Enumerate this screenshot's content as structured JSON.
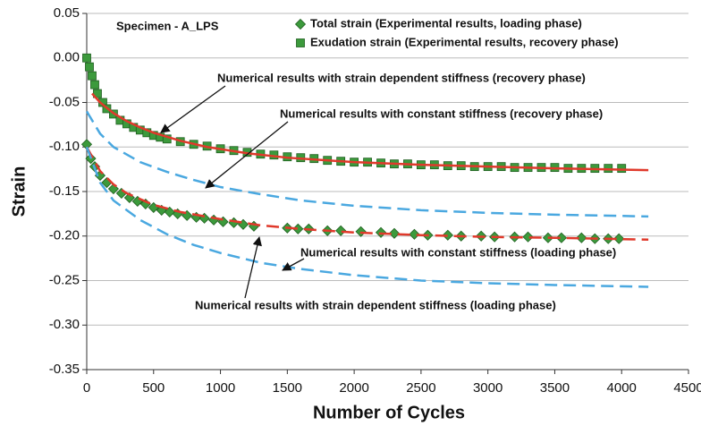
{
  "chart_data": {
    "type": "line",
    "x_label": "Number of Cycles",
    "y_label": "Strain",
    "xlim": [
      0,
      4500
    ],
    "ylim": [
      -0.35,
      0.05
    ],
    "xticks": [
      0,
      500,
      1000,
      1500,
      2000,
      2500,
      3000,
      3500,
      4000,
      4500
    ],
    "yticks": [
      0.05,
      {
        "value": 0,
        "label": "0.00"
      },
      -0.05,
      {
        "value": -0.1,
        "label": "-0.10"
      },
      -0.15,
      {
        "value": -0.2,
        "label": "-0.20"
      },
      -0.25,
      {
        "value": -0.3,
        "label": "-0.30"
      },
      -0.35
    ],
    "grid": true,
    "annotations": [
      "Specimen - A_LPS",
      "Numerical results with strain dependent stiffness (recovery phase)",
      "Numerical results with constant stiffness (recovery phase)",
      "Numerical results with constant stiffness (loading phase)",
      "Numerical results with strain dependent stiffness (loading phase)"
    ],
    "series": [
      {
        "name": "Total strain (Experimental results, loading phase)",
        "color": "#3c9a3c",
        "marker": "diamond",
        "x": [
          0,
          30,
          60,
          100,
          150,
          200,
          260,
          320,
          380,
          440,
          500,
          560,
          620,
          680,
          750,
          820,
          880,
          950,
          1020,
          1100,
          1170,
          1250,
          1500,
          1580,
          1660,
          1800,
          1900,
          2050,
          2200,
          2300,
          2450,
          2550,
          2700,
          2800,
          2950,
          3050,
          3200,
          3300,
          3450,
          3550,
          3700,
          3800,
          3900,
          3980
        ],
        "values": [
          -0.097,
          -0.113,
          -0.122,
          -0.132,
          -0.14,
          -0.147,
          -0.152,
          -0.157,
          -0.161,
          -0.164,
          -0.168,
          -0.171,
          -0.173,
          -0.175,
          -0.177,
          -0.179,
          -0.18,
          -0.182,
          -0.184,
          -0.185,
          -0.187,
          -0.189,
          -0.191,
          -0.192,
          -0.192,
          -0.194,
          -0.194,
          -0.195,
          -0.196,
          -0.197,
          -0.198,
          -0.199,
          -0.199,
          -0.2,
          -0.2,
          -0.201,
          -0.201,
          -0.201,
          -0.202,
          -0.202,
          -0.202,
          -0.203,
          -0.203,
          -0.203
        ]
      },
      {
        "name": "Exudation strain (Experimental results, recovery phase)",
        "color": "#3c9a3c",
        "marker": "square",
        "x": [
          0,
          20,
          40,
          60,
          80,
          120,
          150,
          200,
          250,
          300,
          350,
          400,
          450,
          500,
          550,
          600,
          700,
          800,
          900,
          1000,
          1100,
          1200,
          1300,
          1400,
          1500,
          1600,
          1700,
          1800,
          1900,
          2000,
          2100,
          2200,
          2300,
          2400,
          2500,
          2600,
          2700,
          2800,
          2900,
          3000,
          3100,
          3200,
          3300,
          3400,
          3500,
          3600,
          3700,
          3800,
          3900,
          4000
        ],
        "values": [
          0.0,
          -0.01,
          -0.02,
          -0.03,
          -0.04,
          -0.05,
          -0.057,
          -0.063,
          -0.07,
          -0.074,
          -0.078,
          -0.081,
          -0.084,
          -0.087,
          -0.089,
          -0.091,
          -0.094,
          -0.097,
          -0.099,
          -0.102,
          -0.104,
          -0.106,
          -0.108,
          -0.109,
          -0.111,
          -0.112,
          -0.113,
          -0.115,
          -0.116,
          -0.117,
          -0.117,
          -0.118,
          -0.119,
          -0.119,
          -0.12,
          -0.12,
          -0.121,
          -0.121,
          -0.122,
          -0.122,
          -0.122,
          -0.123,
          -0.123,
          -0.123,
          -0.123,
          -0.124,
          -0.124,
          -0.124,
          -0.124,
          -0.124
        ]
      },
      {
        "color": "#e0392b",
        "dash": false,
        "x": [
          40,
          100,
          200,
          300,
          400,
          500,
          700,
          900,
          1200,
          1500,
          2000,
          2500,
          3000,
          3500,
          4200
        ],
        "values": [
          -0.04,
          -0.05,
          -0.062,
          -0.071,
          -0.078,
          -0.084,
          -0.093,
          -0.1,
          -0.107,
          -0.112,
          -0.117,
          -0.12,
          -0.122,
          -0.124,
          -0.126
        ]
      },
      {
        "color": "#e0392b",
        "dash": true,
        "x": [
          0,
          100,
          200,
          300,
          500,
          700,
          1000,
          1300,
          1600,
          2000,
          2500,
          3000,
          3500,
          4200
        ],
        "values": [
          -0.1,
          -0.127,
          -0.142,
          -0.152,
          -0.165,
          -0.173,
          -0.181,
          -0.188,
          -0.192,
          -0.196,
          -0.199,
          -0.201,
          -0.202,
          -0.204
        ]
      },
      {
        "color": "#4aa8e0",
        "dash": true,
        "x": [
          0,
          100,
          200,
          400,
          600,
          800,
          1000,
          1300,
          1600,
          2000,
          2500,
          3000,
          3500,
          4200
        ],
        "values": [
          -0.06,
          -0.085,
          -0.1,
          -0.117,
          -0.128,
          -0.137,
          -0.145,
          -0.153,
          -0.16,
          -0.166,
          -0.171,
          -0.174,
          -0.176,
          -0.178
        ]
      },
      {
        "color": "#4aa8e0",
        "dash": true,
        "x": [
          0,
          100,
          200,
          400,
          600,
          800,
          1000,
          1300,
          1600,
          2000,
          2500,
          3000,
          3500,
          4200
        ],
        "values": [
          -0.1,
          -0.14,
          -0.16,
          -0.182,
          -0.198,
          -0.21,
          -0.219,
          -0.23,
          -0.237,
          -0.244,
          -0.25,
          -0.253,
          -0.255,
          -0.257
        ]
      }
    ]
  }
}
